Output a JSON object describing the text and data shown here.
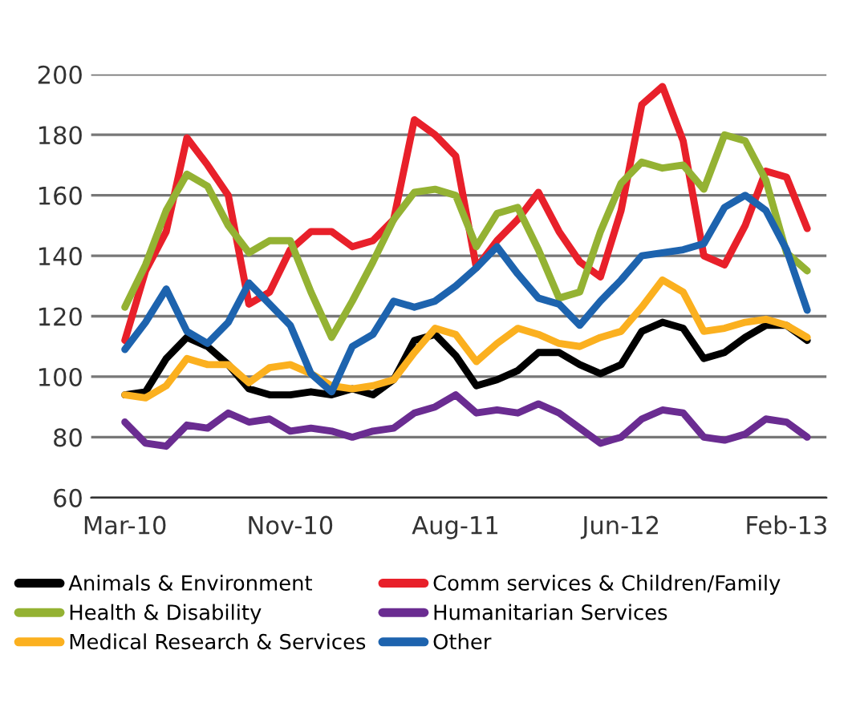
{
  "chart_data": {
    "type": "line",
    "categories": [
      "Mar-10",
      null,
      null,
      null,
      null,
      null,
      null,
      null,
      "Nov-10",
      null,
      null,
      null,
      null,
      null,
      null,
      null,
      "Aug-11",
      null,
      null,
      null,
      null,
      null,
      null,
      null,
      "Jun-12",
      null,
      null,
      null,
      null,
      null,
      null,
      null,
      "Feb-13",
      null
    ],
    "series": [
      {
        "name": "Animals & Environment",
        "color": "#000000",
        "values": [
          94,
          95,
          106,
          113,
          110,
          104,
          96,
          94,
          94,
          95,
          94,
          96,
          94,
          99,
          112,
          114,
          107,
          97,
          99,
          102,
          108,
          108,
          104,
          101,
          104,
          115,
          118,
          116,
          106,
          108,
          113,
          117,
          117,
          112
        ]
      },
      {
        "name": "Comm services & Children/Family",
        "color": "#e8202a",
        "values": [
          112,
          135,
          148,
          179,
          170,
          160,
          124,
          128,
          142,
          148,
          148,
          143,
          145,
          152,
          185,
          180,
          173,
          136,
          145,
          152,
          161,
          148,
          138,
          133,
          155,
          190,
          196,
          178,
          140,
          137,
          150,
          168,
          166,
          149
        ]
      },
      {
        "name": "Health & Disability",
        "color": "#94b233",
        "values": [
          123,
          137,
          155,
          167,
          163,
          150,
          141,
          145,
          145,
          128,
          113,
          125,
          138,
          152,
          161,
          162,
          160,
          143,
          154,
          156,
          142,
          126,
          128,
          148,
          164,
          171,
          169,
          170,
          162,
          180,
          178,
          165,
          141,
          135
        ]
      },
      {
        "name": "Humanitarian Services",
        "color": "#6a2c91",
        "values": [
          85,
          78,
          77,
          84,
          83,
          88,
          85,
          86,
          82,
          83,
          82,
          80,
          82,
          83,
          88,
          90,
          94,
          88,
          89,
          88,
          91,
          88,
          83,
          78,
          80,
          86,
          89,
          88,
          80,
          79,
          81,
          86,
          85,
          80
        ]
      },
      {
        "name": "Medical Research & Services",
        "color": "#fbb01f",
        "values": [
          94,
          93,
          97,
          106,
          104,
          104,
          98,
          103,
          104,
          101,
          97,
          96,
          97,
          99,
          108,
          116,
          114,
          105,
          111,
          116,
          114,
          111,
          110,
          113,
          115,
          123,
          132,
          128,
          115,
          116,
          118,
          119,
          117,
          113
        ]
      },
      {
        "name": "Other",
        "color": "#1d63ae",
        "values": [
          109,
          118,
          129,
          115,
          111,
          118,
          131,
          124,
          117,
          101,
          95,
          110,
          114,
          125,
          123,
          125,
          130,
          136,
          143,
          134,
          126,
          124,
          117,
          125,
          132,
          140,
          141,
          142,
          144,
          156,
          160,
          155,
          142,
          122
        ]
      }
    ],
    "ylim": [
      60,
      200
    ],
    "yticks": [
      60,
      80,
      100,
      120,
      140,
      160,
      180,
      200
    ],
    "grid": "y",
    "legend": "bottom",
    "line_style": "solid",
    "marker": "none"
  }
}
